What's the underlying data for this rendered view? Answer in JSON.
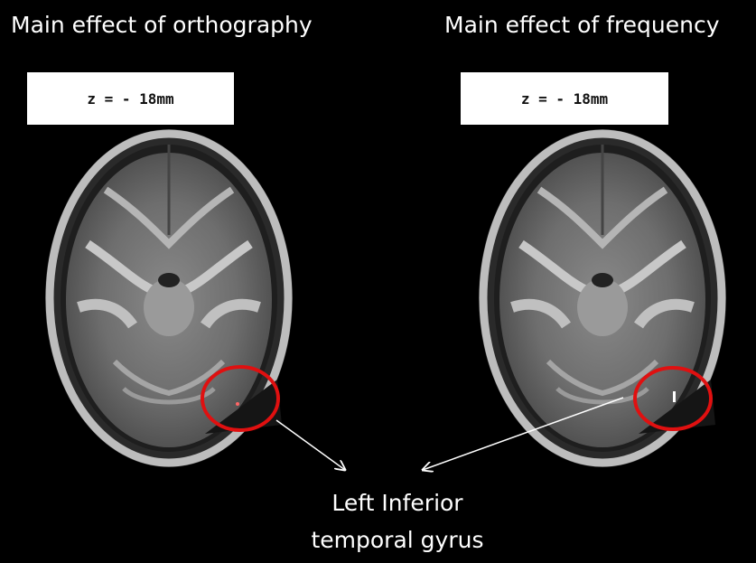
{
  "panels": [
    {
      "title": "Main effect of orthography",
      "slice": "z = - 18mm"
    },
    {
      "title": "Main effect of frequency",
      "slice": "z = - 18mm"
    }
  ],
  "annotation": {
    "lines": [
      "Left Inferior",
      "temporal gyrus"
    ]
  }
}
